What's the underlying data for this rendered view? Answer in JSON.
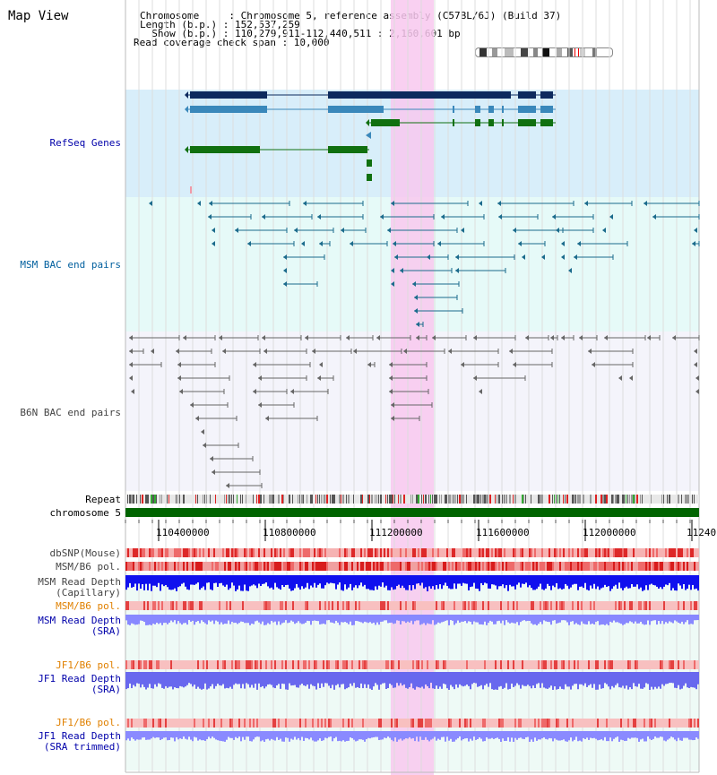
{
  "view_title": "Map View",
  "header": {
    "chromosome_line": "Chromosome     : Chromosome 5, reference assembly (C57BL/6J) (Build 37)",
    "length_line": "Length (b.p.) : 152,537,259",
    "show_line": "  Show (b.p.) : 110,279,911-112,440,511 : 2,160,601 bp",
    "span_line": "Read coverage check span : 10,000"
  },
  "colors": {
    "refseq_bg": "#d8eefa",
    "msm_bac_bg": "#e6faf8",
    "b6n_bac_bg": "#f4f4fb",
    "lower_bg": "#eefaf6",
    "highlight": "#f8c8ee",
    "label_blue": "#0000aa",
    "label_orange": "#e08000",
    "chromosome_green": "#006400"
  },
  "tracks": {
    "refseq": "RefSeq Genes",
    "msm_bac": "MSM BAC end pairs",
    "b6n_bac": "B6N BAC end pairs",
    "repeat": "Repeat",
    "chromosome": "chromosome 5",
    "dbsnp": "dbSNP(Mouse)",
    "msm_b6_pol_1": "MSM/B6 pol.",
    "msm_depth_cap_1": "MSM Read Depth",
    "msm_depth_cap_2": "(Capillary)",
    "msm_b6_pol_2": "MSM/B6 pol.",
    "msm_depth_sra_1": "MSM Read Depth",
    "msm_depth_sra_2": "(SRA)",
    "jf1_pol_1": "JF1/B6 pol.",
    "jf1_depth_sra_1": "JF1 Read Depth",
    "jf1_depth_sra_2": "(SRA)",
    "jf1_pol_2": "JF1/B6 pol.",
    "jf1_depth_trim_1": "JF1 Read Depth",
    "jf1_depth_trim_2": "(SRA trimmed)"
  },
  "ruler": {
    "ticks": [
      "110400000",
      "110800000",
      "111200000",
      "111600000",
      "112000000",
      "11240"
    ]
  }
}
